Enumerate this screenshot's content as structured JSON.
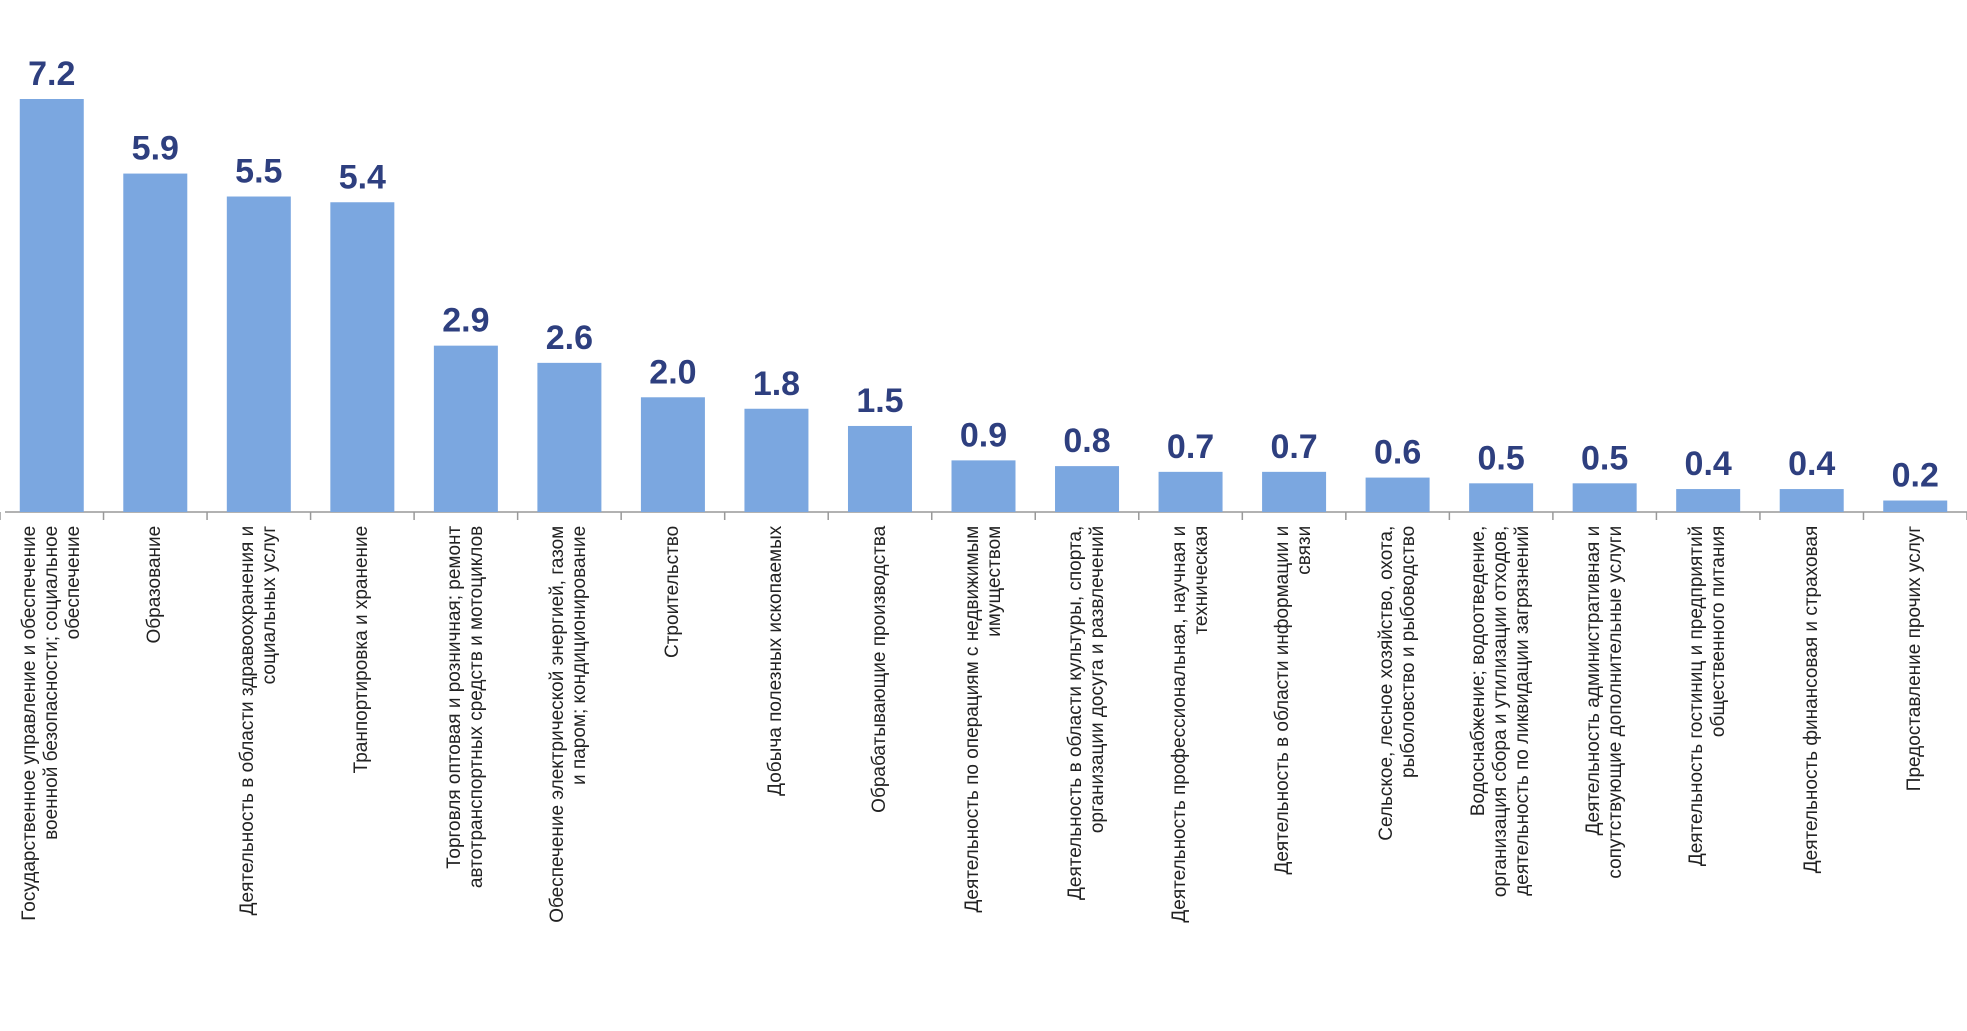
{
  "chart_data": {
    "type": "bar",
    "categories": [
      "Государственное управление и обеспечение\nвоенной безопасности; социальное\nобеспечение",
      "Образование",
      "Деятельность в области здравоохранения и\nсоциальных услуг",
      "Транпортировка и хранение",
      "Торговля оптовая и розничная; ремонт\nавтотранспортных средств и мотоциклов",
      "Обеспечение электрической энергией, газом\nи паром; кондиционирование",
      "Строительство",
      "Добыча полезных ископаемых",
      "Обрабатывающие производства",
      "Деятельность по операциям с недвижимым\nимуществом",
      "Деятельность в области культуры, спорта,\nорганизации досуга и развлечений",
      "Деятельность профессиональная, научная и\nтехническая",
      "Деятельность в области информации и\nсвязи",
      "Сельское, лесное хозяйство, охота,\nрыболовство и рыбоводство",
      "Водоснабжение; водоотведение,\nорганизация сбора и утилизации отходов,\nдеятельность по ликвидации загрязнений",
      "Деятельность административная и\nсопутствующие дополнительные услуги",
      "Деятельность гостиниц и предприятий\nобщественного питания",
      "Деятельность финансовая и страховая",
      "Предоставление прочих услуг"
    ],
    "values": [
      7.2,
      5.9,
      5.5,
      5.4,
      2.9,
      2.6,
      2.0,
      1.8,
      1.5,
      0.9,
      0.8,
      0.7,
      0.7,
      0.6,
      0.5,
      0.5,
      0.4,
      0.4,
      0.2
    ],
    "value_labels": [
      "7.2",
      "5.9",
      "5.5",
      "5.4",
      "2.9",
      "2.6",
      "2.0",
      "1.8",
      "1.5",
      "0.9",
      "0.8",
      "0.7",
      "0.7",
      "0.6",
      "0.5",
      "0.5",
      "0.4",
      "0.4",
      "0.2"
    ],
    "color": "#7ba7e0"
  }
}
